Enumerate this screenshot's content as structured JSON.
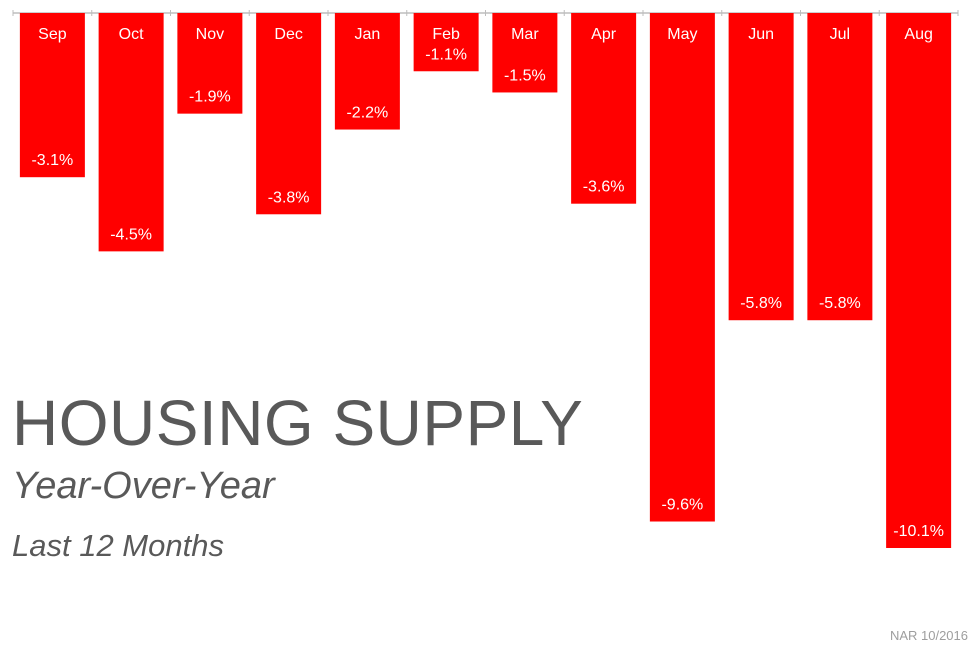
{
  "title": "HOUSING SUPPLY",
  "subtitle": "Year-Over-Year",
  "subtitle2": "Last 12 Months",
  "source": "NAR 10/2016",
  "colors": {
    "bar": "#ff0000",
    "bar_text": "#ffffff",
    "axis": "#bdbdbd",
    "text": "#595959"
  },
  "chart_data": {
    "type": "bar",
    "categories": [
      "Sep",
      "Oct",
      "Nov",
      "Dec",
      "Jan",
      "Feb",
      "Mar",
      "Apr",
      "May",
      "Jun",
      "Jul",
      "Aug"
    ],
    "values": [
      -3.1,
      -4.5,
      -1.9,
      -3.8,
      -2.2,
      -1.1,
      -1.5,
      -3.6,
      -9.6,
      -5.8,
      -5.8,
      -10.1
    ],
    "labels": [
      "-3.1%",
      "-4.5%",
      "-1.9%",
      "-3.8%",
      "-2.2%",
      "-1.1%",
      "-1.5%",
      "-3.6%",
      "-9.6%",
      "-5.8%",
      "-5.8%",
      "-10.1%"
    ],
    "ylim": [
      -10.1,
      0
    ],
    "grid": false,
    "legend": "none"
  }
}
